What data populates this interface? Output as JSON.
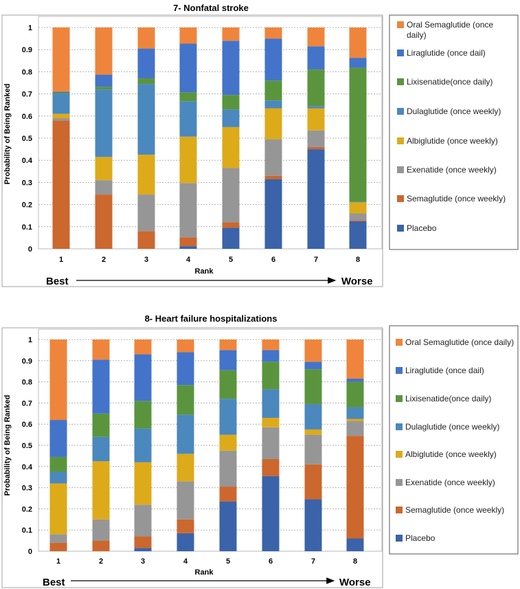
{
  "colors": {
    "placebo": "#3a63a9",
    "semaglutide_weekly": "#cc672e",
    "exenatide": "#969696",
    "albiglutide": "#ddaa1a",
    "dulaglutide": "#4b88bd",
    "lixisenatide": "#5a953d",
    "liraglutide": "#4374c9",
    "oral_semaglutide": "#ef853c"
  },
  "rank_direction": {
    "best": "Best",
    "worse": "Worse"
  },
  "chart_data": [
    {
      "type": "bar",
      "stacked": true,
      "title": "7- Nonfatal stroke",
      "xlabel": "Rank",
      "ylabel": "Probability of Being Ranked",
      "ylim": [
        0,
        1
      ],
      "yticks": [
        "0",
        "0.1",
        "0.2",
        "0.3",
        "0.4",
        "0.5",
        "0.6",
        "0.7",
        "0.8",
        "0.9",
        "1"
      ],
      "categories": [
        "1",
        "2",
        "3",
        "4",
        "5",
        "6",
        "7",
        "8"
      ],
      "legend_position": "right",
      "legend_labels": [
        "Oral Semaglutide (once daily)",
        "Liraglutide (once dail)",
        "Lixisenatide(once daily)",
        "Dulaglutide (once weekly)",
        "Albiglutide (once weekly)",
        "Exenatide (once weekly)",
        "Semaglutide (once weekly)",
        "Placebo"
      ],
      "series": [
        {
          "name": "Placebo",
          "color_key": "placebo",
          "values": [
            0,
            0,
            0,
            0.012,
            0.095,
            0.315,
            0.45,
            0.125
          ]
        },
        {
          "name": "Semaglutide (once weekly)",
          "color_key": "semaglutide_weekly",
          "values": [
            0.58,
            0.245,
            0.08,
            0.04,
            0.025,
            0.015,
            0.01,
            0.005
          ]
        },
        {
          "name": "Exenatide (once weekly)",
          "color_key": "exenatide",
          "values": [
            0.01,
            0.065,
            0.165,
            0.245,
            0.245,
            0.165,
            0.075,
            0.03
          ]
        },
        {
          "name": "Albiglutide (once weekly)",
          "color_key": "albiglutide",
          "values": [
            0.02,
            0.105,
            0.18,
            0.21,
            0.185,
            0.14,
            0.1,
            0.05
          ]
        },
        {
          "name": "Dulaglutide (once weekly)",
          "color_key": "dulaglutide",
          "values": [
            0.09,
            0.305,
            0.32,
            0.16,
            0.08,
            0.035,
            0.01,
            0.003
          ]
        },
        {
          "name": "Lixisenatide(once daily)",
          "color_key": "lixisenatide",
          "values": [
            0.005,
            0.012,
            0.025,
            0.04,
            0.065,
            0.09,
            0.165,
            0.605
          ]
        },
        {
          "name": "Liraglutide (once dail)",
          "color_key": "liraglutide",
          "values": [
            0.005,
            0.055,
            0.135,
            0.22,
            0.245,
            0.19,
            0.105,
            0.045
          ]
        },
        {
          "name": "Oral Semaglutide (once daily)",
          "color_key": "oral_semaglutide",
          "values": [
            0.29,
            0.213,
            0.095,
            0.073,
            0.06,
            0.05,
            0.085,
            0.137
          ]
        }
      ]
    },
    {
      "type": "bar",
      "stacked": true,
      "title": "8- Heart failure hospitalizations",
      "xlabel": "Rank",
      "ylabel": "Probability of Being Ranked",
      "ylim": [
        0,
        1
      ],
      "yticks": [
        "0",
        "0.1",
        "0.2",
        "0.3",
        "0.4",
        "0.5",
        "0.6",
        "0.7",
        "0.8",
        "0.9",
        "1"
      ],
      "categories": [
        "1",
        "2",
        "3",
        "4",
        "5",
        "6",
        "7",
        "8"
      ],
      "legend_position": "right",
      "legend_labels": [
        "Oral Semaglutide (once daily)",
        "Liraglutide (once dail)",
        "Lixisenatide(once daily)",
        "Dulaglutide (once weekly)",
        "Albiglutide (once weekly)",
        "Exenatide (once weekly)",
        "Semaglutide (once weekly)",
        "Placebo"
      ],
      "series": [
        {
          "name": "Placebo",
          "color_key": "placebo",
          "values": [
            0,
            0,
            0.015,
            0.085,
            0.235,
            0.355,
            0.245,
            0.06
          ]
        },
        {
          "name": "Semaglutide (once weekly)",
          "color_key": "semaglutide_weekly",
          "values": [
            0.04,
            0.05,
            0.055,
            0.065,
            0.07,
            0.08,
            0.165,
            0.485
          ]
        },
        {
          "name": "Exenatide (once weekly)",
          "color_key": "exenatide",
          "values": [
            0.04,
            0.1,
            0.15,
            0.18,
            0.17,
            0.15,
            0.14,
            0.07
          ]
        },
        {
          "name": "Albiglutide (once weekly)",
          "color_key": "albiglutide",
          "values": [
            0.24,
            0.275,
            0.2,
            0.13,
            0.075,
            0.045,
            0.025,
            0.01
          ]
        },
        {
          "name": "Dulaglutide (once weekly)",
          "color_key": "dulaglutide",
          "values": [
            0.055,
            0.115,
            0.16,
            0.185,
            0.17,
            0.135,
            0.12,
            0.055
          ]
        },
        {
          "name": "Lixisenatide(once daily)",
          "color_key": "lixisenatide",
          "values": [
            0.07,
            0.11,
            0.13,
            0.14,
            0.135,
            0.13,
            0.165,
            0.12
          ]
        },
        {
          "name": "Liraglutide (once dail)",
          "color_key": "liraglutide",
          "values": [
            0.175,
            0.255,
            0.22,
            0.155,
            0.095,
            0.055,
            0.035,
            0.015
          ]
        },
        {
          "name": "Oral Semaglutide (once daily)",
          "color_key": "oral_semaglutide",
          "values": [
            0.38,
            0.095,
            0.07,
            0.06,
            0.05,
            0.05,
            0.105,
            0.185
          ]
        }
      ]
    }
  ]
}
